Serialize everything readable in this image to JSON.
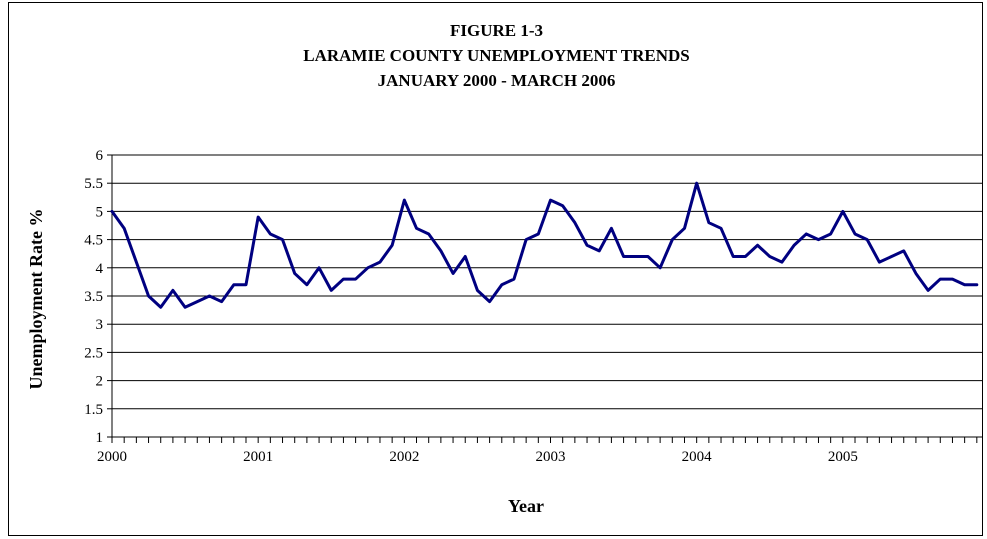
{
  "chart_data": {
    "type": "line",
    "title": [
      "FIGURE 1-3",
      "LARAMIE COUNTY UNEMPLOYMENT TRENDS",
      "JANUARY 2000 - MARCH 2006"
    ],
    "xlabel": "Year",
    "ylabel": "Unemployment Rate %",
    "ylim": [
      1,
      6
    ],
    "y_ticks": [
      "1",
      "1.5",
      "2",
      "2.5",
      "3",
      "3.5",
      "4",
      "4.5",
      "5",
      "5.5",
      "6"
    ],
    "x_tick_labels": [
      "2000",
      "2001",
      "2002",
      "2003",
      "2004",
      "2005"
    ],
    "grid": "horizontal",
    "line_color": "#000080",
    "series": [
      {
        "values": [
          5.0,
          4.7,
          4.1,
          3.5,
          3.3,
          3.6,
          3.3,
          3.4,
          3.5,
          3.4,
          3.7,
          3.7,
          4.9,
          4.6,
          4.5,
          3.9,
          3.7,
          4.0,
          3.6,
          3.8,
          3.8,
          4.0,
          4.1,
          4.4,
          5.2,
          4.7,
          4.6,
          4.3,
          3.9,
          4.2,
          3.6,
          3.4,
          3.7,
          3.8,
          4.5,
          4.6,
          5.2,
          5.1,
          4.8,
          4.4,
          4.3,
          4.7,
          4.2,
          4.2,
          4.2,
          4.0,
          4.5,
          4.7,
          5.5,
          4.8,
          4.7,
          4.2,
          4.2,
          4.4,
          4.2,
          4.1,
          4.4,
          4.6,
          4.5,
          4.6,
          5.0,
          4.6,
          4.5,
          4.1,
          4.2,
          4.3,
          3.9,
          3.6,
          3.8,
          3.8,
          3.7,
          3.7
        ]
      }
    ]
  }
}
